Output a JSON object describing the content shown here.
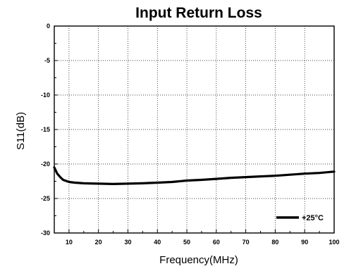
{
  "chart_data": {
    "type": "line",
    "title": "Input Return Loss",
    "xlabel": "Frequency(MHz)",
    "ylabel": "S11(dB)",
    "xlim": [
      5,
      100
    ],
    "ylim": [
      -30,
      0
    ],
    "x_ticks": [
      10,
      20,
      30,
      40,
      50,
      60,
      70,
      80,
      90,
      100
    ],
    "y_ticks": [
      0,
      -5,
      -10,
      -15,
      -20,
      -25,
      -30
    ],
    "x_tick_labels": [
      "10",
      "20",
      "30",
      "40",
      "50",
      "60",
      "70",
      "80",
      "90",
      "100"
    ],
    "y_tick_labels": [
      "0",
      "-5",
      "-10",
      "-15",
      "-20",
      "-25",
      "-30"
    ],
    "grid": true,
    "legend_position": "bottom-right",
    "series": [
      {
        "name": "+25°C",
        "color": "#000000",
        "x": [
          5,
          6,
          7,
          8,
          10,
          12,
          15,
          20,
          25,
          30,
          35,
          40,
          45,
          50,
          55,
          60,
          65,
          70,
          75,
          80,
          85,
          90,
          95,
          100
        ],
        "y": [
          -20.5,
          -21.4,
          -21.9,
          -22.3,
          -22.6,
          -22.7,
          -22.8,
          -22.85,
          -22.9,
          -22.85,
          -22.8,
          -22.7,
          -22.6,
          -22.4,
          -22.3,
          -22.15,
          -22.0,
          -21.9,
          -21.8,
          -21.7,
          -21.55,
          -21.4,
          -21.3,
          -21.1
        ]
      }
    ]
  }
}
